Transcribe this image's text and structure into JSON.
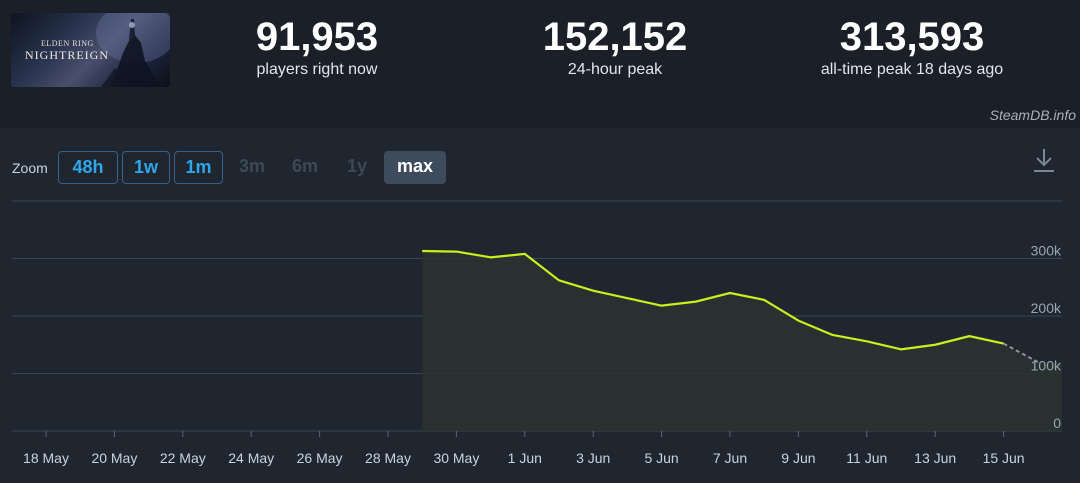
{
  "header": {
    "game_logo_line1": "ELDEN RING",
    "game_logo_line2": "NIGHTREIGN",
    "stats": [
      {
        "value": "91,953",
        "label": "players right now"
      },
      {
        "value": "152,152",
        "label": "24-hour peak"
      },
      {
        "value": "313,593",
        "label": "all-time peak 18 days ago"
      }
    ]
  },
  "credit": "SteamDB.info",
  "zoom": {
    "label": "Zoom",
    "buttons": [
      {
        "label": "48h",
        "state": "enabled"
      },
      {
        "label": "1w",
        "state": "enabled"
      },
      {
        "label": "1m",
        "state": "enabled"
      },
      {
        "label": "3m",
        "state": "disabled"
      },
      {
        "label": "6m",
        "state": "disabled"
      },
      {
        "label": "1y",
        "state": "disabled"
      },
      {
        "label": "max",
        "state": "selected"
      }
    ]
  },
  "download_icon": "download-icon",
  "colors": {
    "line": "#c6f01e",
    "grid": "#3a4552",
    "background": "#1f2630",
    "accent": "#2fa7e8"
  },
  "chart_data": {
    "type": "line",
    "y_ticks": [
      "300k",
      "200k",
      "100k",
      "0"
    ],
    "y_tick_values": [
      300000,
      200000,
      100000,
      0
    ],
    "ylim": [
      0,
      400000
    ],
    "x_ticks": [
      "18 May",
      "20 May",
      "22 May",
      "24 May",
      "26 May",
      "28 May",
      "30 May",
      "1 Jun",
      "3 Jun",
      "5 Jun",
      "7 Jun",
      "9 Jun",
      "11 Jun",
      "13 Jun",
      "15 Jun"
    ],
    "series": [
      {
        "points": [
          [
            "29 May",
            313000
          ],
          [
            "30 May",
            312000
          ],
          [
            "31 May",
            302000
          ],
          [
            "1 Jun",
            308000
          ],
          [
            "2 Jun",
            262000
          ],
          [
            "3 Jun",
            244000
          ],
          [
            "4 Jun",
            231000
          ],
          [
            "5 Jun",
            218000
          ],
          [
            "6 Jun",
            225000
          ],
          [
            "7 Jun",
            240000
          ],
          [
            "8 Jun",
            228000
          ],
          [
            "9 Jun",
            192000
          ],
          [
            "10 Jun",
            167000
          ],
          [
            "11 Jun",
            156000
          ],
          [
            "12 Jun",
            142000
          ],
          [
            "13 Jun",
            150000
          ],
          [
            "14 Jun",
            165000
          ],
          [
            "15 Jun",
            152000
          ]
        ],
        "partial_point": [
          "16 Jun",
          120000
        ]
      }
    ],
    "grid": true
  }
}
